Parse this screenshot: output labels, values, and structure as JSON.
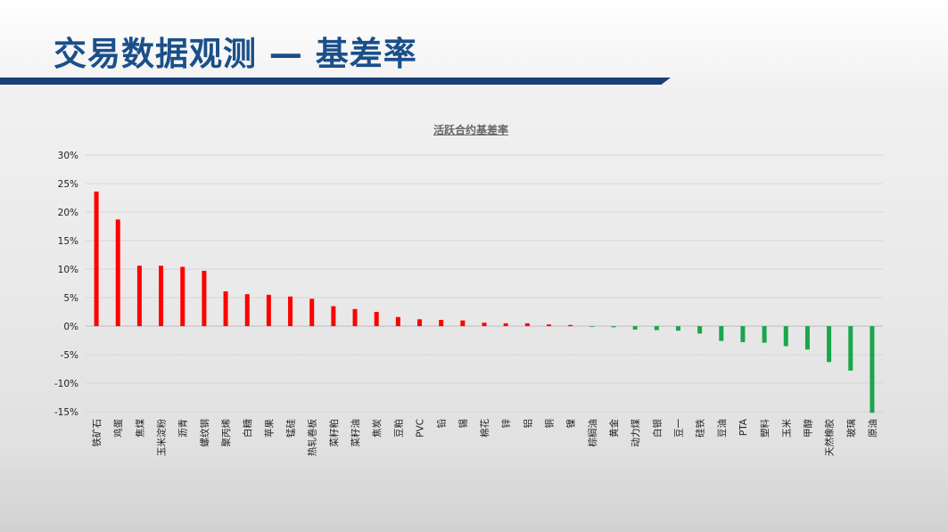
{
  "slide": {
    "title": "交易数据观测 — 基差率"
  },
  "colors": {
    "title": "#1b4f8a",
    "rule": "#1a3d78",
    "positive": "#ff0000",
    "negative": "#1aa64a"
  },
  "chart_data": {
    "type": "bar",
    "title": "活跃合约基差率",
    "xlabel": "",
    "ylabel": "",
    "ylim": [
      -15,
      30
    ],
    "yticks": [
      30,
      25,
      20,
      15,
      10,
      5,
      0,
      -5,
      -10,
      -15
    ],
    "ytick_labels": [
      "30%",
      "25%",
      "20%",
      "15%",
      "10%",
      "5%",
      "0%",
      "-5%",
      "-10%",
      "-15%"
    ],
    "grid": true,
    "categories": [
      "铁矿石",
      "鸡蛋",
      "焦煤",
      "玉米淀粉",
      "沥青",
      "螺纹钢",
      "聚丙烯",
      "白糖",
      "苹果",
      "锰硅",
      "热轧卷板",
      "菜籽粕",
      "菜籽油",
      "焦炭",
      "豆粕",
      "PVC",
      "铅",
      "锡",
      "棉花",
      "锌",
      "铝",
      "铜",
      "镍",
      "棕榈油",
      "黄金",
      "动力煤",
      "白银",
      "豆一",
      "硅铁",
      "豆油",
      "PTA",
      "塑料",
      "玉米",
      "甲醇",
      "天然橡胶",
      "玻璃",
      "原油"
    ],
    "values": [
      23.6,
      18.7,
      10.6,
      10.6,
      10.4,
      9.7,
      6.1,
      5.6,
      5.5,
      5.2,
      4.8,
      3.5,
      3.0,
      2.5,
      1.6,
      1.2,
      1.1,
      1.0,
      0.6,
      0.5,
      0.5,
      0.3,
      0.2,
      -0.1,
      -0.2,
      -0.6,
      -0.7,
      -0.8,
      -1.3,
      -2.6,
      -2.8,
      -2.9,
      -3.5,
      -4.1,
      -6.3,
      -7.8,
      -15.2
    ]
  }
}
